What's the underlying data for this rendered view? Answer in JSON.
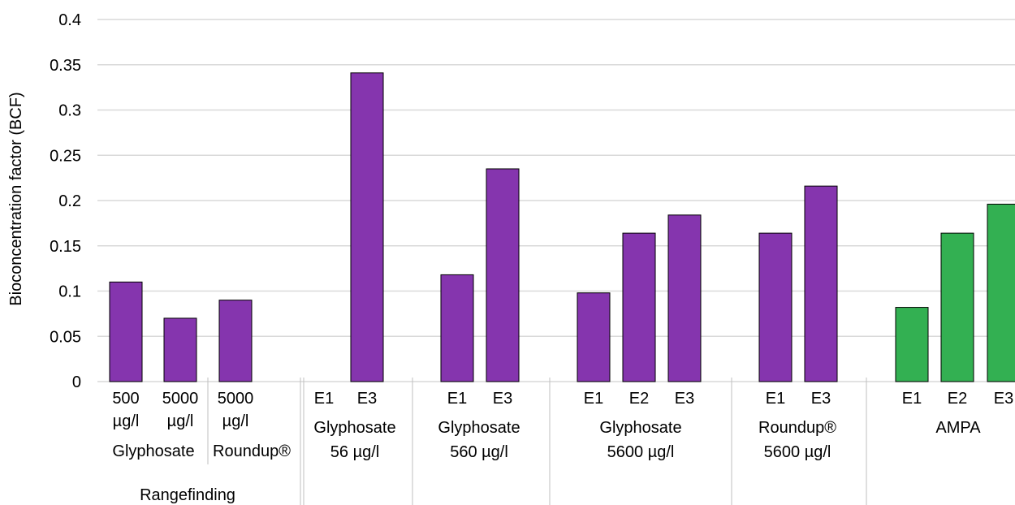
{
  "chart_data": {
    "type": "bar",
    "ylabel": "Bioconcentration factor (BCF)",
    "xlabel": "",
    "ylim": [
      0,
      0.4
    ],
    "yticks": [
      "0",
      "0.05",
      "0.1",
      "0.15",
      "0.2",
      "0.25",
      "0.3",
      "0.35",
      "0.4"
    ],
    "colors": {
      "glyphosate_roundup": "#8535ae",
      "ampa": "#33b052",
      "grid": "#d9d9d9",
      "bar_border": "#000000"
    },
    "bars": [
      {
        "group": "Rangefinding",
        "label": [
          "500",
          "µg/l"
        ],
        "value": 0.11,
        "color": "#8535ae"
      },
      {
        "group": "Rangefinding",
        "label": [
          "5000",
          "µg/l"
        ],
        "value": 0.07,
        "color": "#8535ae"
      },
      {
        "group": "Rangefinding",
        "label": [
          "5000",
          "µg/l"
        ],
        "value": 0.09,
        "color": "#8535ae"
      },
      {
        "group": "Glyphosate 56 µg/l",
        "label": [
          "E1"
        ],
        "value": null,
        "color": "#8535ae"
      },
      {
        "group": "Glyphosate 56 µg/l",
        "label": [
          "E3"
        ],
        "value": 0.341,
        "color": "#8535ae"
      },
      {
        "group": "Glyphosate 560 µg/l",
        "label": [
          "E1"
        ],
        "value": 0.118,
        "color": "#8535ae"
      },
      {
        "group": "Glyphosate 560 µg/l",
        "label": [
          "E3"
        ],
        "value": 0.235,
        "color": "#8535ae"
      },
      {
        "group": "Glyphosate 5600 µg/l",
        "label": [
          "E1"
        ],
        "value": 0.098,
        "color": "#8535ae"
      },
      {
        "group": "Glyphosate 5600 µg/l",
        "label": [
          "E2"
        ],
        "value": 0.164,
        "color": "#8535ae"
      },
      {
        "group": "Glyphosate 5600 µg/l",
        "label": [
          "E3"
        ],
        "value": 0.184,
        "color": "#8535ae"
      },
      {
        "group": "Roundup® 5600 µg/l",
        "label": [
          "E1"
        ],
        "value": 0.164,
        "color": "#8535ae"
      },
      {
        "group": "Roundup® 5600 µg/l",
        "label": [
          "E3"
        ],
        "value": 0.216,
        "color": "#8535ae"
      },
      {
        "group": "AMPA",
        "label": [
          "E1"
        ],
        "value": 0.082,
        "color": "#33b052"
      },
      {
        "group": "AMPA",
        "label": [
          "E2"
        ],
        "value": 0.164,
        "color": "#33b052"
      },
      {
        "group": "AMPA",
        "label": [
          "E3"
        ],
        "value": 0.196,
        "color": "#33b052"
      }
    ],
    "group_labels": [
      {
        "lines": [
          "Glyphosate"
        ]
      },
      {
        "lines": [
          "Roundup®"
        ]
      },
      {
        "lines": [
          "Glyphosate",
          "56 µg/l"
        ]
      },
      {
        "lines": [
          "Glyphosate",
          "560 µg/l"
        ]
      },
      {
        "lines": [
          "Glyphosate",
          "5600 µg/l"
        ]
      },
      {
        "lines": [
          "Roundup®",
          "5600 µg/l"
        ]
      },
      {
        "lines": [
          "AMPA"
        ]
      },
      {
        "lines": [
          "Rangefinding"
        ]
      }
    ]
  }
}
